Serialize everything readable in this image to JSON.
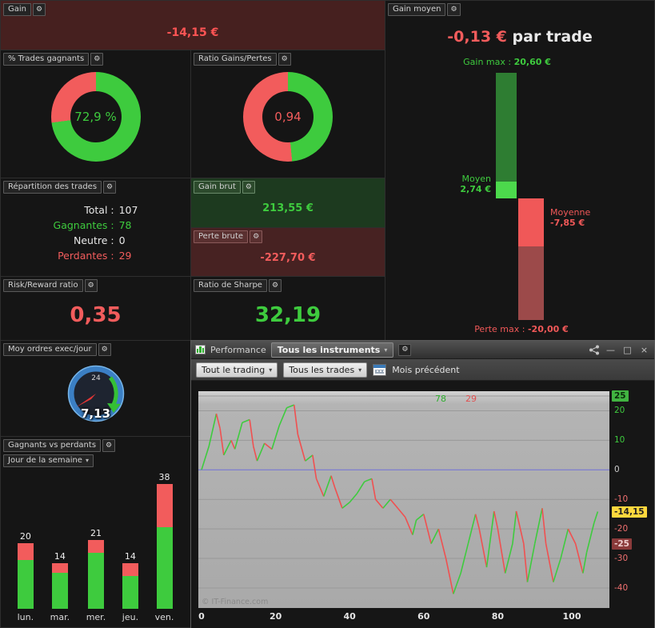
{
  "icons": {
    "wrench": "⚙",
    "caret": "▾",
    "minimize": "—",
    "maximize": "□",
    "close": "×"
  },
  "panels": {
    "gain": {
      "label": "Gain",
      "value": "-14,15 €"
    },
    "pct_trades": {
      "label": "% Trades gagnants"
    },
    "ratio_gp": {
      "label": "Ratio Gains/Pertes"
    },
    "repartition": {
      "label": "Répartition des trades",
      "rows": [
        {
          "label": "Total :",
          "value": "107",
          "color": "light"
        },
        {
          "label": "Gagnantes :",
          "value": "78",
          "color": "green"
        },
        {
          "label": "Neutre :",
          "value": "0",
          "color": "light"
        },
        {
          "label": "Perdantes :",
          "value": "29",
          "color": "red"
        }
      ]
    },
    "gain_brut": {
      "label": "Gain brut",
      "value": "213,55 €"
    },
    "perte_brute": {
      "label": "Perte brute",
      "value": "-227,70 €"
    },
    "risk_reward": {
      "label": "Risk/Reward ratio",
      "value": "0,35"
    },
    "sharpe": {
      "label": "Ratio de Sharpe",
      "value": "32,19"
    },
    "moy_ordres": {
      "label": "Moy ordres exec/jour",
      "value": "7,13",
      "gauge_hours": "24"
    },
    "gagnants_perdants": {
      "label": "Gagnants vs perdants",
      "filter_label": "Jour de la semaine"
    },
    "gain_moyen": {
      "label": "Gain moyen",
      "value": "-0,13 €",
      "value_suffix": "par trade",
      "gain_max_label": "Gain max :",
      "gain_max_value": "20,60 €",
      "moyen_label": "Moyen",
      "moyen_value": "2,74 €",
      "moyenne_label": "Moyenne",
      "moyenne_value": "-7,85 €",
      "perte_max_label": "Perte max :",
      "perte_max_value": "-20,00 €"
    }
  },
  "perf_window": {
    "tab_performance": "Performance",
    "instruments_dropdown": "Tous les instruments",
    "trading_filter": "Tout le trading",
    "trades_filter": "Tous les trades",
    "period_label": "Mois précédent",
    "wins_count": "78",
    "losses_count": "29",
    "watermark": "© IT-Finance.com"
  },
  "chart_data": [
    {
      "type": "pie",
      "name": "pct_trades_gagnants",
      "title": "% Trades gagnants",
      "center_label": "72,9 %",
      "slices": [
        {
          "label": "gagnants",
          "value": 72.9,
          "color": "#3ecb3e"
        },
        {
          "label": "perdants",
          "value": 27.1,
          "color": "#f25c5c"
        }
      ]
    },
    {
      "type": "pie",
      "name": "ratio_gains_pertes",
      "title": "Ratio Gains/Pertes",
      "center_label": "0,94",
      "slices": [
        {
          "label": "gains",
          "value": 48.5,
          "color": "#3ecb3e"
        },
        {
          "label": "pertes",
          "value": 51.5,
          "color": "#f25c5c"
        }
      ]
    },
    {
      "type": "bar",
      "name": "gain_moyen_bars",
      "values": {
        "gain_max": 20.6,
        "moyen": 2.74,
        "moyenne": -7.85,
        "perte_max": -20.0
      }
    },
    {
      "type": "bar",
      "name": "gagnants_vs_perdants_par_jour",
      "categories": [
        "lun.",
        "mar.",
        "mer.",
        "jeu.",
        "ven."
      ],
      "series": [
        {
          "name": "gagnants",
          "color": "#3ecb3e",
          "values": [
            15,
            11,
            17,
            10,
            25
          ]
        },
        {
          "name": "perdants",
          "color": "#f25c5c",
          "values": [
            5,
            3,
            4,
            4,
            13
          ]
        }
      ],
      "totals": [
        20,
        14,
        21,
        14,
        38
      ]
    },
    {
      "type": "line",
      "name": "performance_curve",
      "title": "Performance",
      "xlim": [
        0,
        111
      ],
      "ylim": [
        -47,
        26.5
      ],
      "x_ticks": [
        0,
        20,
        40,
        60,
        80,
        100
      ],
      "y_ticks": [
        25,
        20,
        10,
        0,
        -10,
        -20,
        -30,
        -40
      ],
      "final_value": -14.15,
      "marked_levels": [
        {
          "value": 25,
          "text": "25",
          "style": "box-green"
        },
        {
          "value": -14.15,
          "text": "-14,15",
          "style": "box-yellow"
        },
        {
          "value": -25,
          "text": "-25",
          "style": "box-red"
        }
      ],
      "points": [
        [
          0,
          0
        ],
        [
          2,
          8
        ],
        [
          4,
          19
        ],
        [
          5,
          14
        ],
        [
          6,
          5
        ],
        [
          8,
          10
        ],
        [
          9,
          7
        ],
        [
          11,
          16
        ],
        [
          13,
          17
        ],
        [
          14,
          8
        ],
        [
          15,
          3
        ],
        [
          17,
          9
        ],
        [
          19,
          7
        ],
        [
          21,
          15
        ],
        [
          23,
          21
        ],
        [
          25,
          22
        ],
        [
          26,
          12
        ],
        [
          28,
          3
        ],
        [
          30,
          5
        ],
        [
          31,
          -3
        ],
        [
          33,
          -9
        ],
        [
          35,
          -2
        ],
        [
          36,
          -6
        ],
        [
          38,
          -13
        ],
        [
          40,
          -11
        ],
        [
          42,
          -8
        ],
        [
          44,
          -4
        ],
        [
          46,
          -3
        ],
        [
          47,
          -10
        ],
        [
          49,
          -13
        ],
        [
          51,
          -10
        ],
        [
          53,
          -13
        ],
        [
          55,
          -16
        ],
        [
          57,
          -22
        ],
        [
          58,
          -17
        ],
        [
          60,
          -15
        ],
        [
          62,
          -25
        ],
        [
          64,
          -20
        ],
        [
          66,
          -30
        ],
        [
          68,
          -42
        ],
        [
          70,
          -35
        ],
        [
          72,
          -25
        ],
        [
          74,
          -15
        ],
        [
          75,
          -20
        ],
        [
          77,
          -33
        ],
        [
          79,
          -14
        ],
        [
          80,
          -20
        ],
        [
          82,
          -35
        ],
        [
          84,
          -25
        ],
        [
          85,
          -14
        ],
        [
          87,
          -25
        ],
        [
          88,
          -38
        ],
        [
          90,
          -25
        ],
        [
          92,
          -13
        ],
        [
          93,
          -25
        ],
        [
          95,
          -38
        ],
        [
          97,
          -30
        ],
        [
          99,
          -20
        ],
        [
          101,
          -25
        ],
        [
          103,
          -35
        ],
        [
          104,
          -28
        ],
        [
          106,
          -18
        ],
        [
          107,
          -14.15
        ]
      ]
    }
  ]
}
